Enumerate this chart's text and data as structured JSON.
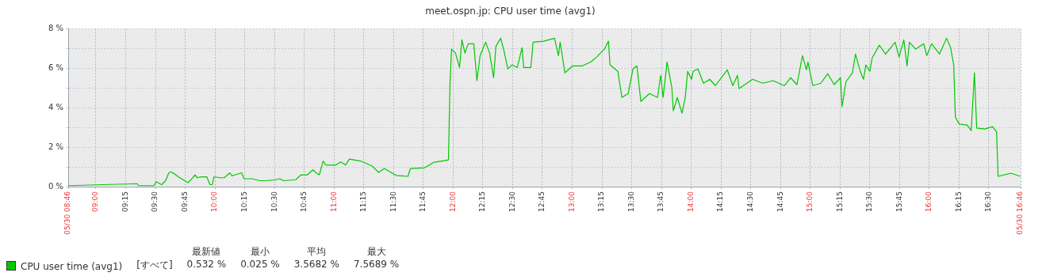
{
  "chart_data": {
    "type": "line",
    "title": "meet.ospn.jp: CPU user time (avg1)",
    "xlim": [
      8.767,
      16.767
    ],
    "xticks": [
      {
        "value": 8.767,
        "label": "05/30 08:46"
      },
      {
        "value": 9,
        "label": "09:00"
      },
      {
        "value": 9.25,
        "label": "09:15"
      },
      {
        "value": 9.5,
        "label": "09:30"
      },
      {
        "value": 9.75,
        "label": "09:45"
      },
      {
        "value": 10,
        "label": "10:00"
      },
      {
        "value": 10.25,
        "label": "10:15"
      },
      {
        "value": 10.5,
        "label": "10:30"
      },
      {
        "value": 10.75,
        "label": "10:45"
      },
      {
        "value": 11,
        "label": "11:00"
      },
      {
        "value": 11.25,
        "label": "11:15"
      },
      {
        "value": 11.5,
        "label": "11:30"
      },
      {
        "value": 11.75,
        "label": "11:45"
      },
      {
        "value": 12,
        "label": "12:00"
      },
      {
        "value": 12.25,
        "label": "12:15"
      },
      {
        "value": 12.5,
        "label": "12:30"
      },
      {
        "value": 12.75,
        "label": "12:45"
      },
      {
        "value": 13,
        "label": "13:00"
      },
      {
        "value": 13.25,
        "label": "13:15"
      },
      {
        "value": 13.5,
        "label": "13:30"
      },
      {
        "value": 13.75,
        "label": "13:45"
      },
      {
        "value": 14,
        "label": "14:00"
      },
      {
        "value": 14.25,
        "label": "14:15"
      },
      {
        "value": 14.5,
        "label": "14:30"
      },
      {
        "value": 14.75,
        "label": "14:45"
      },
      {
        "value": 15,
        "label": "15:00"
      },
      {
        "value": 15.25,
        "label": "15:15"
      },
      {
        "value": 15.5,
        "label": "15:30"
      },
      {
        "value": 15.75,
        "label": "15:45"
      },
      {
        "value": 16,
        "label": "16:00"
      },
      {
        "value": 16.25,
        "label": "16:15"
      },
      {
        "value": 16.5,
        "label": "16:30"
      },
      {
        "value": 16.767,
        "label": "05/30 16:46"
      }
    ],
    "ylim": [
      0,
      8
    ],
    "yticks": [
      {
        "value": 0,
        "label": "0 %"
      },
      {
        "value": 1,
        "label": null
      },
      {
        "value": 2,
        "label": "2 %"
      },
      {
        "value": 3,
        "label": null
      },
      {
        "value": 4,
        "label": "4 %"
      },
      {
        "value": 5,
        "label": null
      },
      {
        "value": 6,
        "label": "6 %"
      },
      {
        "value": 7,
        "label": null
      },
      {
        "value": 8,
        "label": "8 %"
      }
    ],
    "grid": true,
    "legend": "bottom left",
    "marker": "none",
    "line_style": "solid",
    "annotations": [
      "最新値",
      "最小",
      "平均",
      "最大",
      "[すべて]",
      "0.532 %",
      "0.025 %",
      "3.5682 %",
      "7.5689 %"
    ],
    "series": [
      {
        "name": "CPU user time (avg1)",
        "color": "#00c800",
        "x": [
          8.767,
          9.346,
          9.359,
          9.486,
          9.506,
          9.552,
          9.585,
          9.612,
          9.632,
          9.659,
          9.692,
          9.732,
          9.772,
          9.798,
          9.832,
          9.852,
          9.878,
          9.931,
          9.958,
          9.978,
          9.991,
          10.045,
          10.078,
          10.124,
          10.144,
          10.224,
          10.244,
          10.311,
          10.377,
          10.43,
          10.51,
          10.544,
          10.577,
          10.677,
          10.723,
          10.776,
          10.823,
          10.85,
          10.876,
          10.909,
          10.929,
          11.016,
          11.056,
          11.096,
          11.129,
          11.222,
          11.322,
          11.375,
          11.422,
          11.522,
          11.621,
          11.641,
          11.761,
          11.841,
          11.927,
          11.961,
          11.974,
          11.987,
          12.02,
          12.054,
          12.074,
          12.1,
          12.127,
          12.174,
          12.2,
          12.227,
          12.273,
          12.307,
          12.34,
          12.36,
          12.4,
          12.426,
          12.46,
          12.493,
          12.539,
          12.579,
          12.593,
          12.653,
          12.672,
          12.759,
          12.852,
          12.885,
          12.899,
          12.939,
          13.005,
          13.085,
          13.158,
          13.205,
          13.271,
          13.305,
          13.318,
          13.384,
          13.418,
          13.471,
          13.511,
          13.544,
          13.577,
          13.65,
          13.717,
          13.744,
          13.764,
          13.797,
          13.837,
          13.85,
          13.883,
          13.923,
          13.95,
          13.97,
          14.003,
          14.016,
          14.056,
          14.103,
          14.156,
          14.203,
          14.303,
          14.349,
          14.389,
          14.402,
          14.515,
          14.602,
          14.688,
          14.782,
          14.835,
          14.888,
          14.935,
          14.968,
          14.981,
          15.021,
          15.088,
          15.147,
          15.201,
          15.254,
          15.267,
          15.3,
          15.354,
          15.38,
          15.42,
          15.447,
          15.467,
          15.5,
          15.52,
          15.58,
          15.633,
          15.713,
          15.746,
          15.786,
          15.813,
          15.833,
          15.886,
          15.953,
          15.979,
          16.019,
          16.086,
          16.145,
          16.179,
          16.205,
          16.219,
          16.252,
          16.318,
          16.352,
          16.379,
          16.398,
          16.465,
          16.532,
          16.565,
          16.578,
          16.685,
          16.767
        ],
        "values": [
          0.05,
          0.15,
          0.05,
          0.05,
          0.25,
          0.1,
          0.3,
          0.7,
          0.75,
          0.65,
          0.5,
          0.35,
          0.2,
          0.35,
          0.6,
          0.45,
          0.5,
          0.5,
          0.1,
          0.1,
          0.5,
          0.45,
          0.45,
          0.7,
          0.55,
          0.7,
          0.4,
          0.4,
          0.3,
          0.3,
          0.35,
          0.4,
          0.3,
          0.35,
          0.6,
          0.6,
          0.85,
          0.7,
          0.6,
          1.3,
          1.1,
          1.1,
          1.25,
          1.1,
          1.4,
          1.3,
          1.04,
          0.72,
          0.92,
          0.57,
          0.52,
          0.92,
          0.96,
          1.24,
          1.32,
          1.36,
          5.24,
          6.97,
          6.77,
          6.04,
          7.44,
          6.77,
          7.24,
          7.24,
          5.37,
          6.64,
          7.32,
          6.77,
          5.52,
          7.12,
          7.52,
          6.92,
          5.97,
          6.17,
          6.04,
          7.04,
          6.04,
          6.04,
          7.32,
          7.37,
          7.52,
          6.64,
          7.32,
          5.77,
          6.12,
          6.12,
          6.32,
          6.57,
          6.97,
          7.37,
          6.17,
          5.84,
          4.52,
          4.72,
          5.97,
          6.12,
          4.32,
          4.72,
          4.52,
          5.64,
          4.52,
          6.32,
          5.04,
          3.84,
          4.52,
          3.72,
          4.52,
          5.84,
          5.44,
          5.84,
          5.97,
          5.24,
          5.44,
          5.12,
          5.92,
          5.12,
          5.64,
          4.97,
          5.44,
          5.24,
          5.37,
          5.12,
          5.52,
          5.17,
          6.64,
          5.92,
          6.32,
          5.12,
          5.24,
          5.72,
          5.17,
          5.52,
          4.04,
          5.32,
          5.77,
          6.72,
          5.84,
          5.44,
          6.17,
          5.84,
          6.52,
          7.17,
          6.72,
          7.32,
          6.57,
          7.44,
          6.12,
          7.32,
          6.97,
          7.24,
          6.64,
          7.24,
          6.72,
          7.52,
          7.04,
          6.17,
          3.52,
          3.17,
          3.12,
          2.84,
          5.77,
          2.97,
          2.92,
          3.04,
          2.77,
          0.52,
          0.68,
          0.52
        ]
      }
    ]
  }
}
